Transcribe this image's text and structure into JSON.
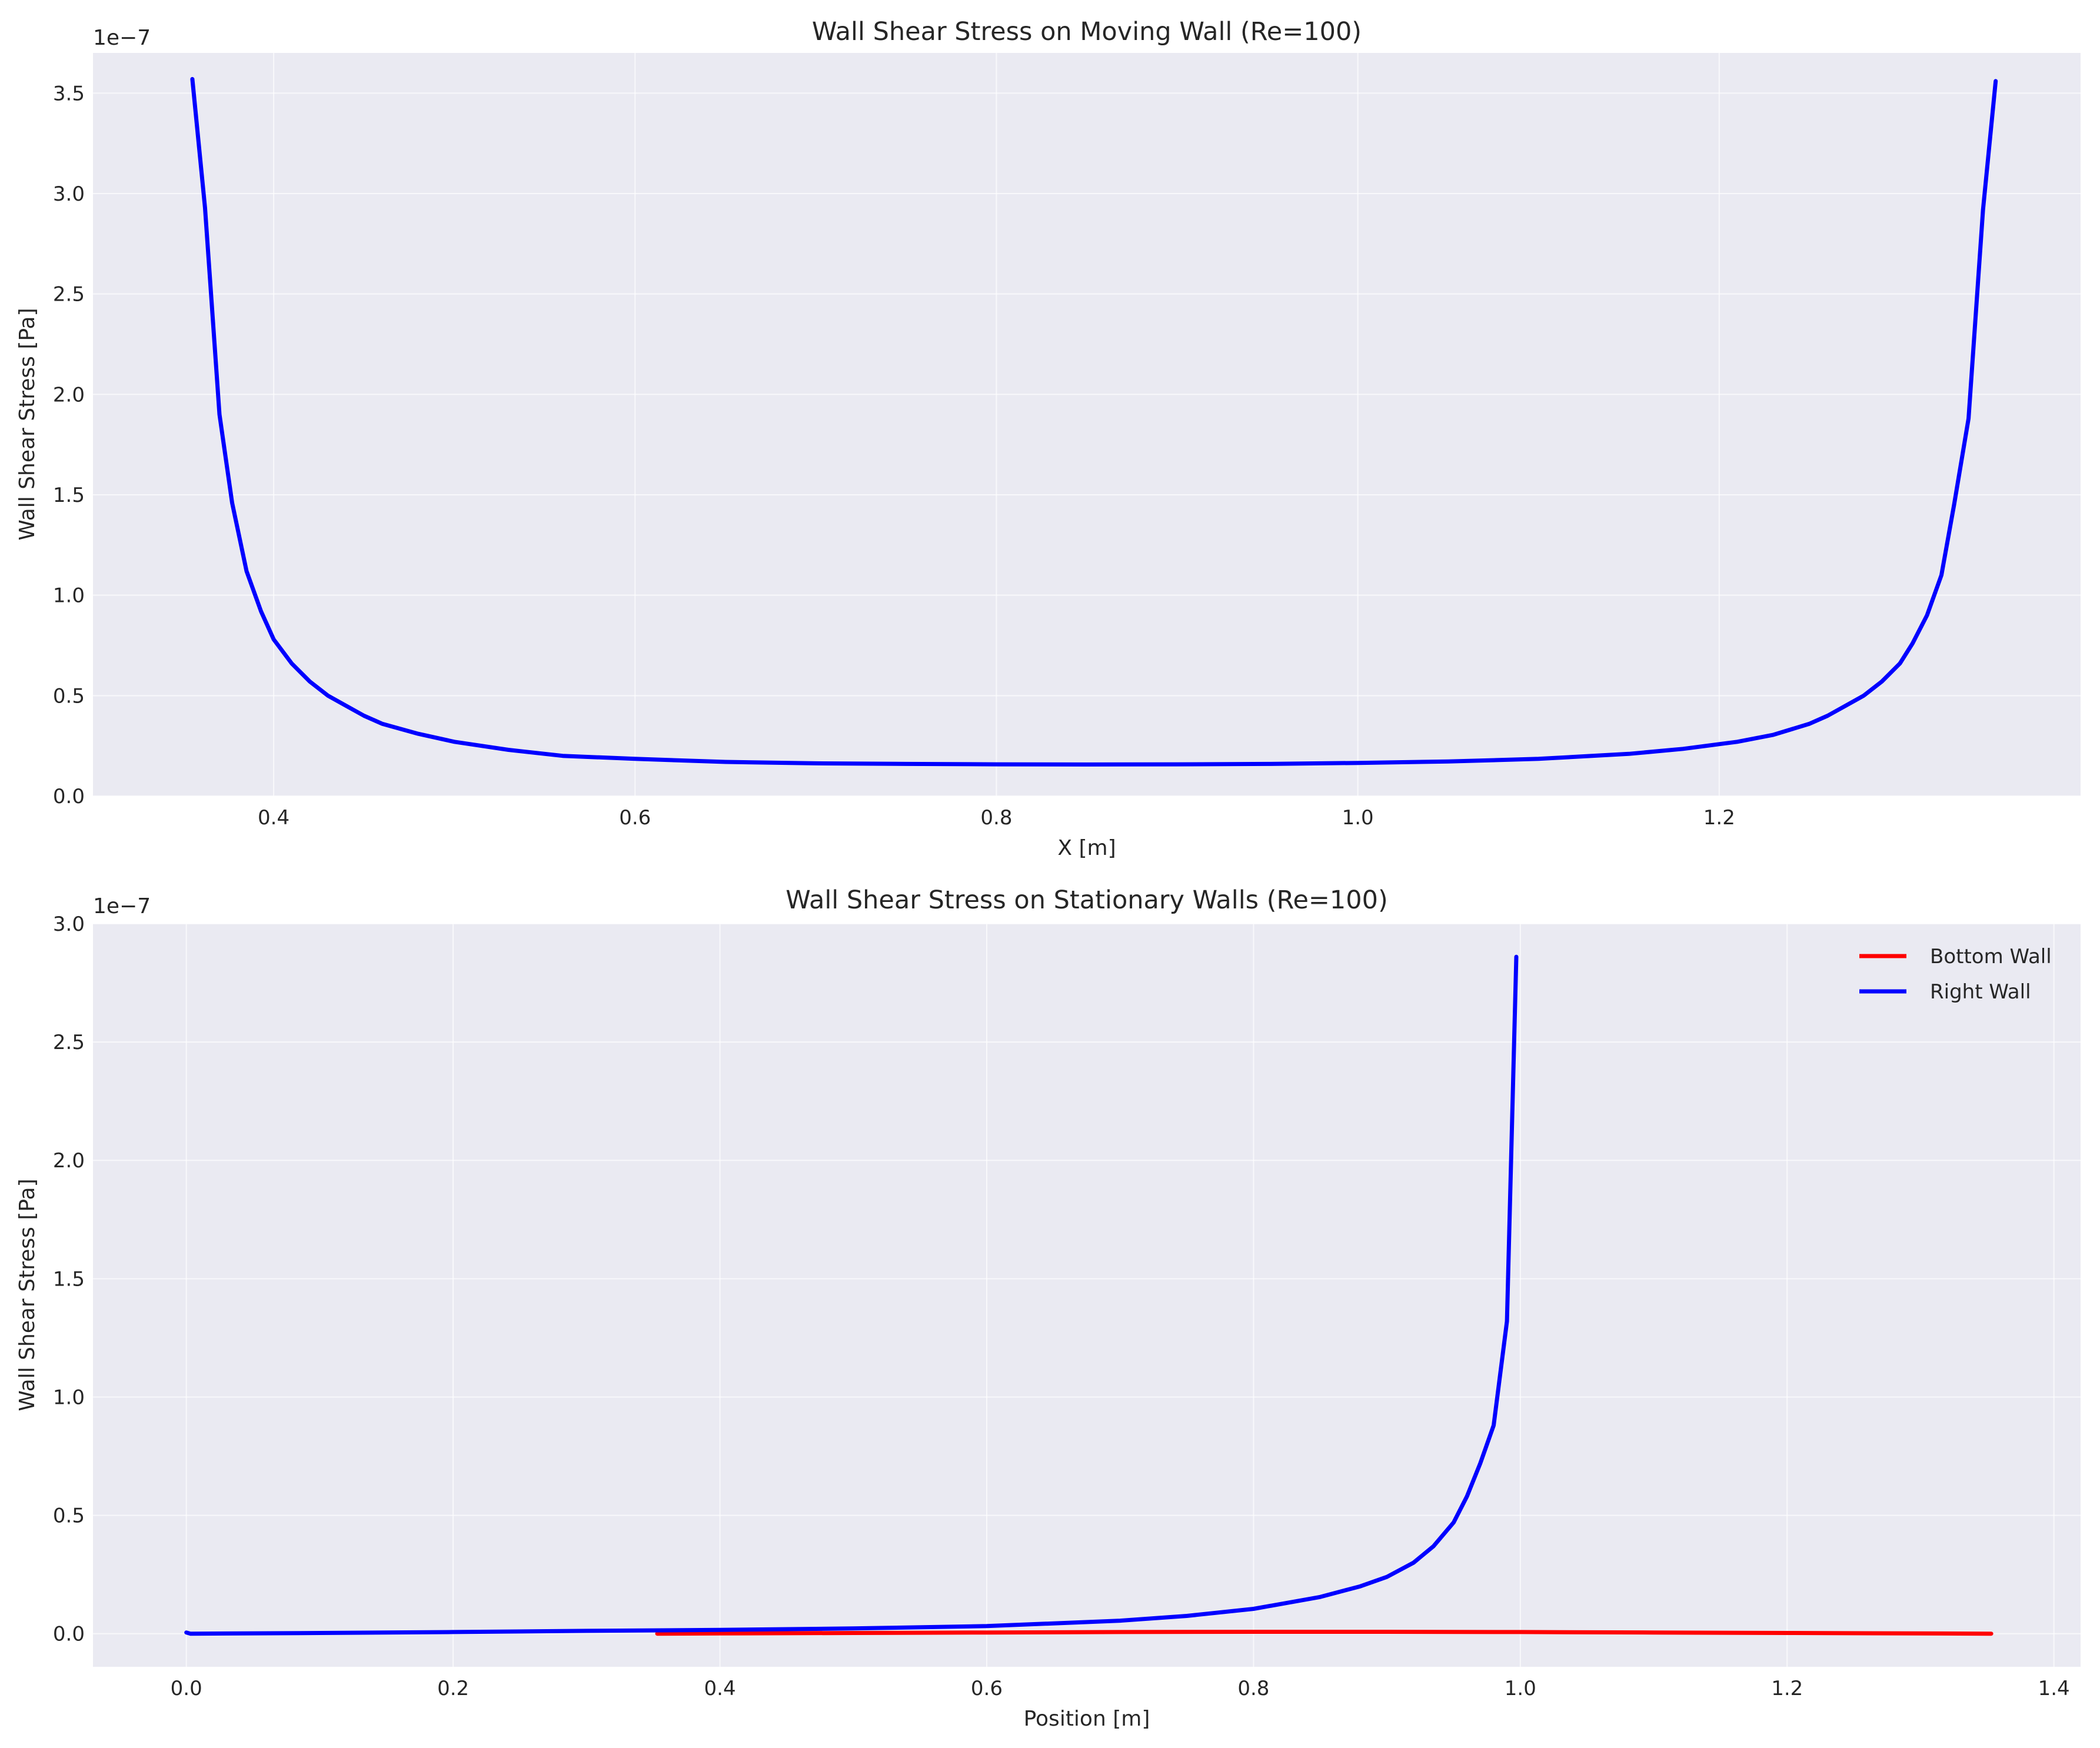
{
  "chart_data": [
    {
      "type": "line",
      "title": "Wall Shear Stress on Moving Wall (Re=100)",
      "xlabel": "X [m]",
      "ylabel": "Wall Shear Stress [Pa]",
      "y_offset_label": "1e−7",
      "xlim": [
        0.3,
        1.4
      ],
      "ylim": [
        0,
        3.7
      ],
      "xticks": [
        "0.4",
        "0.6",
        "0.8",
        "1.0",
        "1.2"
      ],
      "yticks": [
        "0.0",
        "0.5",
        "1.0",
        "1.5",
        "2.0",
        "2.5",
        "3.0",
        "3.5"
      ],
      "grid": true,
      "legend": null,
      "series": [
        {
          "color": "#0000ff",
          "x": [
            0.355,
            0.362,
            0.37,
            0.377,
            0.385,
            0.393,
            0.4,
            0.41,
            0.42,
            0.43,
            0.44,
            0.45,
            0.46,
            0.48,
            0.5,
            0.53,
            0.56,
            0.6,
            0.65,
            0.7,
            0.75,
            0.8,
            0.85,
            0.9,
            0.95,
            1.0,
            1.05,
            1.1,
            1.15,
            1.18,
            1.21,
            1.23,
            1.25,
            1.26,
            1.27,
            1.28,
            1.29,
            1.3,
            1.307,
            1.315,
            1.323,
            1.33,
            1.338,
            1.346,
            1.353
          ],
          "values": [
            3.57,
            2.93,
            1.9,
            1.46,
            1.12,
            0.92,
            0.78,
            0.66,
            0.57,
            0.5,
            0.45,
            0.4,
            0.36,
            0.31,
            0.27,
            0.23,
            0.2,
            0.185,
            0.17,
            0.163,
            0.16,
            0.158,
            0.157,
            0.158,
            0.16,
            0.165,
            0.172,
            0.185,
            0.21,
            0.235,
            0.27,
            0.305,
            0.36,
            0.4,
            0.45,
            0.5,
            0.57,
            0.66,
            0.76,
            0.9,
            1.1,
            1.45,
            1.88,
            2.92,
            3.56
          ]
        }
      ]
    },
    {
      "type": "line",
      "title": "Wall Shear Stress on Stationary Walls (Re=100)",
      "xlabel": "Position [m]",
      "ylabel": "Wall Shear Stress [Pa]",
      "y_offset_label": "1e−7",
      "xlim": [
        -0.07,
        1.42
      ],
      "ylim": [
        -0.14,
        3.0
      ],
      "xticks": [
        "0.0",
        "0.2",
        "0.4",
        "0.6",
        "0.8",
        "1.0",
        "1.2",
        "1.4"
      ],
      "yticks": [
        "0.0",
        "0.5",
        "1.0",
        "1.5",
        "2.0",
        "2.5",
        "3.0"
      ],
      "grid": true,
      "legend": "top-right",
      "series": [
        {
          "name": "Bottom Wall",
          "color": "#ff0000",
          "x": [
            0.353,
            0.4,
            0.5,
            0.6,
            0.7,
            0.8,
            0.9,
            1.0,
            1.1,
            1.2,
            1.3,
            1.353
          ],
          "values": [
            0.0,
            0.001,
            0.003,
            0.005,
            0.007,
            0.008,
            0.008,
            0.007,
            0.005,
            0.003,
            0.001,
            0.0
          ]
        },
        {
          "name": "Right Wall",
          "color": "#0000ff",
          "x": [
            0.0,
            0.003,
            0.1,
            0.2,
            0.3,
            0.4,
            0.5,
            0.6,
            0.7,
            0.75,
            0.8,
            0.85,
            0.88,
            0.9,
            0.92,
            0.935,
            0.95,
            0.96,
            0.97,
            0.98,
            0.99,
            0.997
          ],
          "values": [
            0.005,
            0.0,
            0.003,
            0.007,
            0.012,
            0.016,
            0.022,
            0.032,
            0.055,
            0.075,
            0.105,
            0.155,
            0.2,
            0.24,
            0.3,
            0.37,
            0.47,
            0.58,
            0.72,
            0.88,
            1.32,
            2.86
          ]
        }
      ]
    }
  ]
}
